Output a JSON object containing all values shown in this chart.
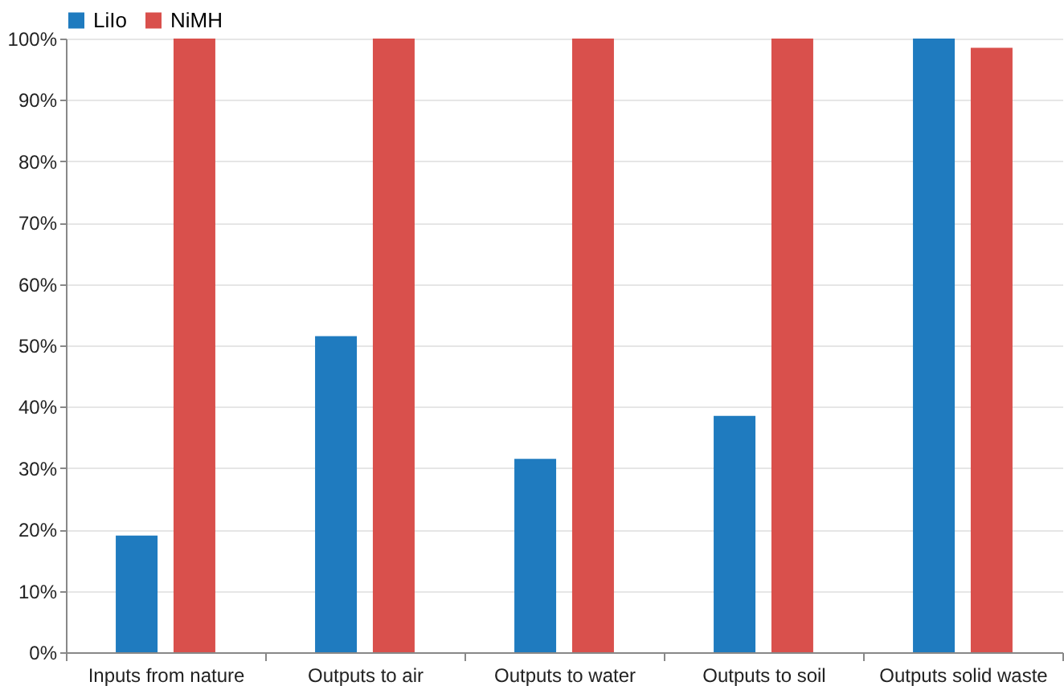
{
  "chart_data": {
    "type": "bar",
    "categories": [
      "Inputs from nature",
      "Outputs to air",
      "Outputs to water",
      "Outputs to soil",
      "Outputs solid waste"
    ],
    "series": [
      {
        "name": "LiIo",
        "color": "#1f7bbf",
        "values": [
          19,
          51.5,
          31.5,
          38.5,
          100
        ]
      },
      {
        "name": "NiMH",
        "color": "#d9504c",
        "values": [
          100,
          100,
          100,
          100,
          98.5
        ]
      }
    ],
    "ylim": [
      0,
      100
    ],
    "yticks": [
      {
        "value": 0,
        "label": "0%"
      },
      {
        "value": 10,
        "label": "10%"
      },
      {
        "value": 20,
        "label": "20%"
      },
      {
        "value": 30,
        "label": "30%"
      },
      {
        "value": 40,
        "label": "40%"
      },
      {
        "value": 50,
        "label": "50%"
      },
      {
        "value": 60,
        "label": "60%"
      },
      {
        "value": 70,
        "label": "70%"
      },
      {
        "value": 80,
        "label": "80%"
      },
      {
        "value": 90,
        "label": "90%"
      },
      {
        "value": 100,
        "label": "100%"
      }
    ],
    "grid": "y",
    "legend": "top"
  }
}
